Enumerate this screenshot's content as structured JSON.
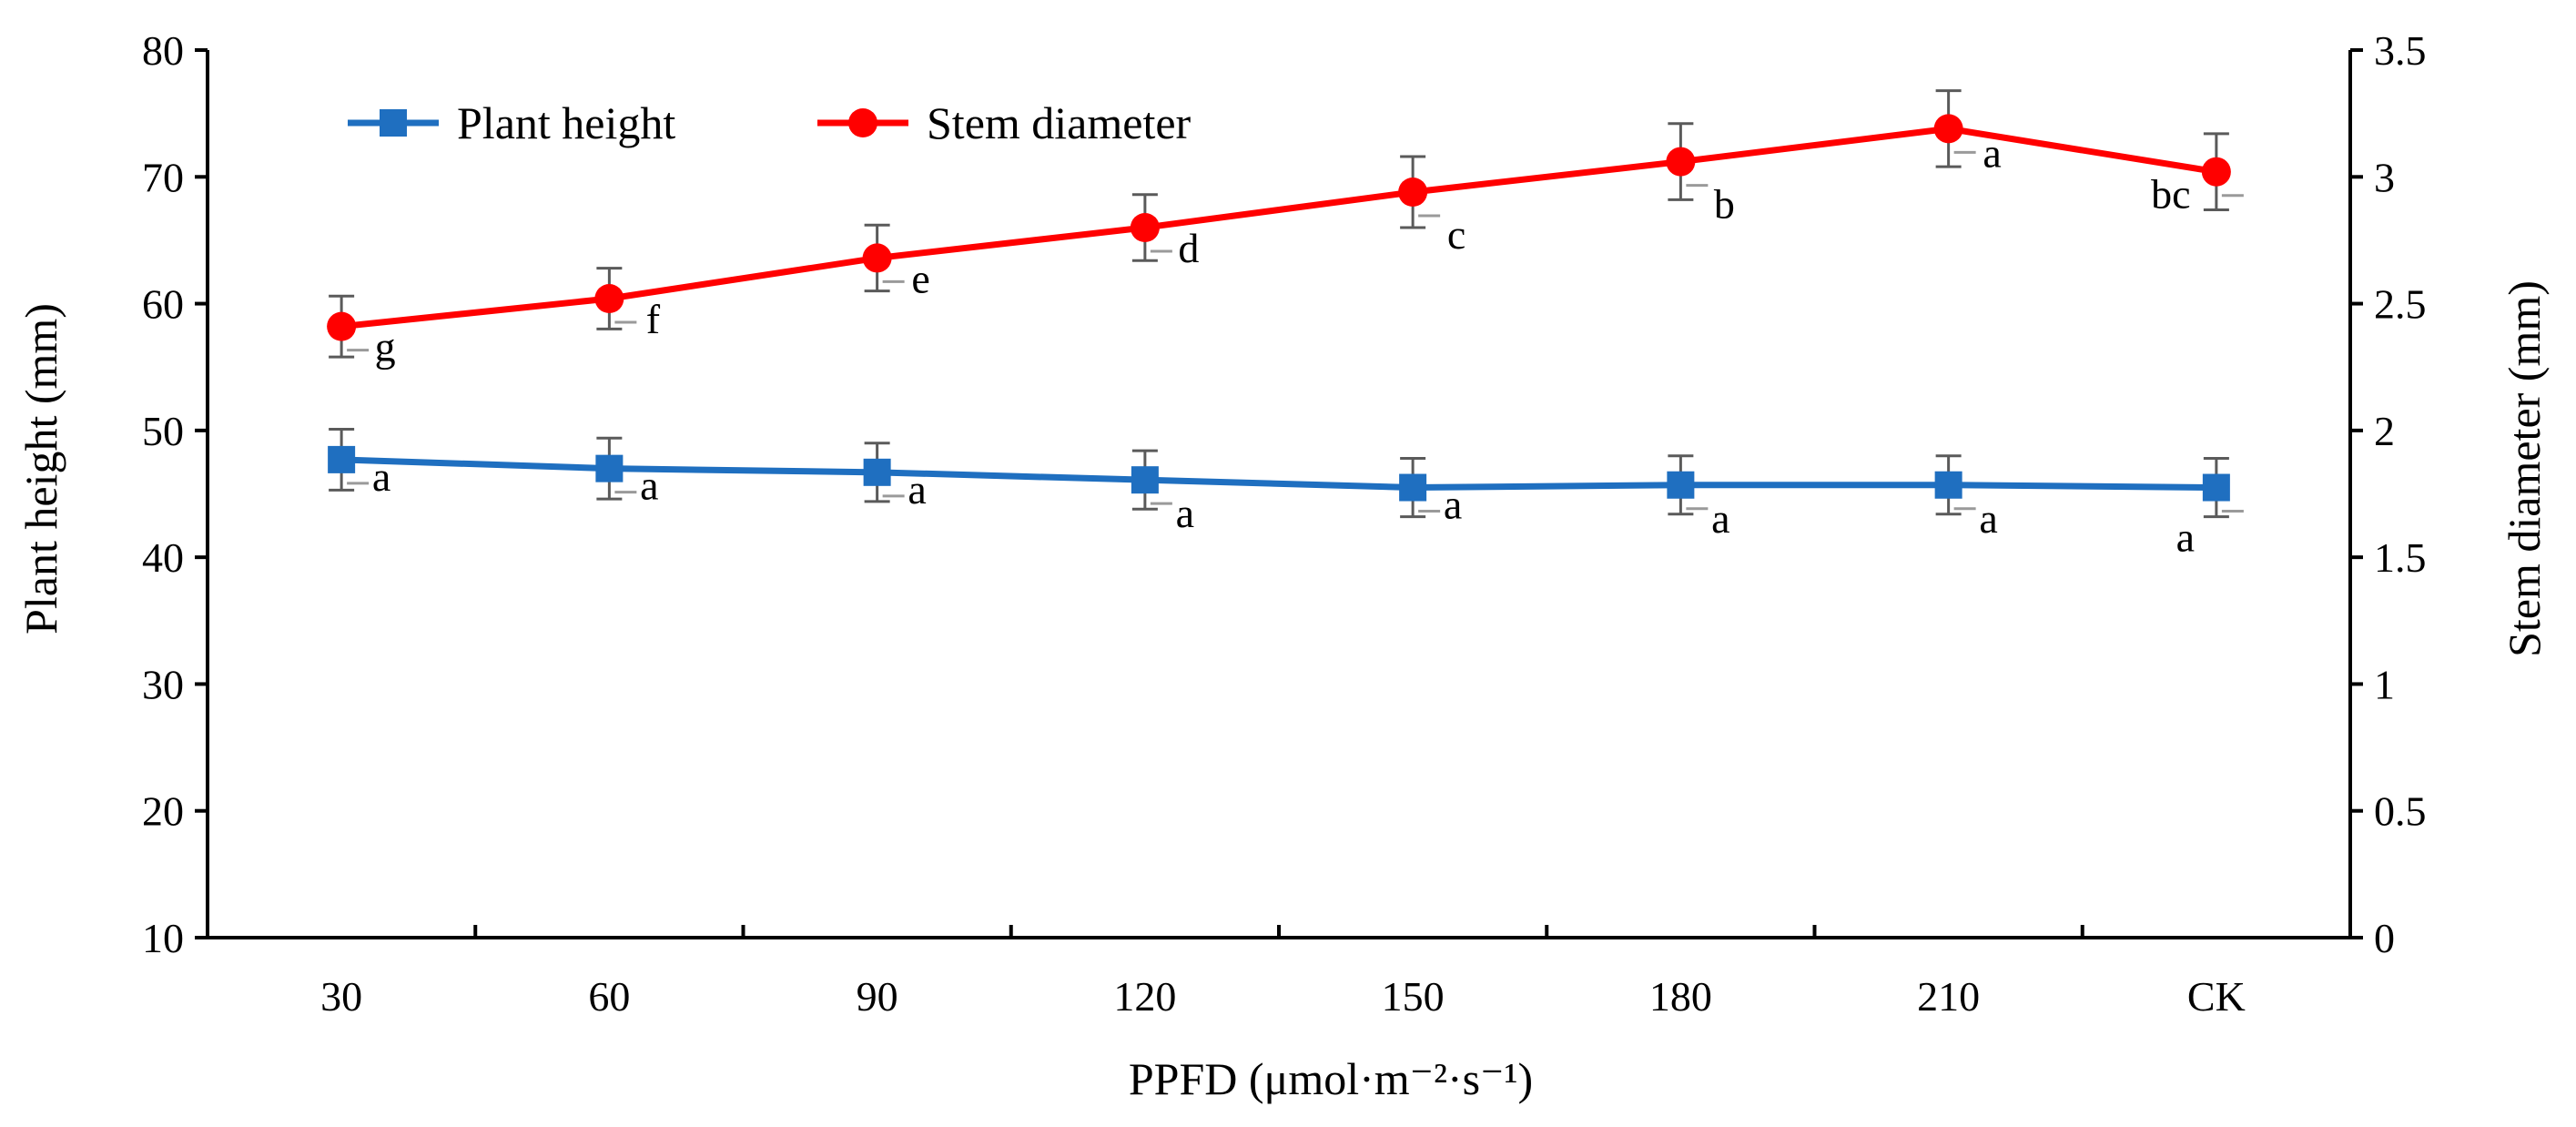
{
  "chart_data": {
    "type": "line",
    "categories": [
      "30",
      "60",
      "90",
      "120",
      "150",
      "180",
      "210",
      "CK"
    ],
    "xlabel": "PPFD (μmol·m⁻²·s⁻¹)",
    "ylabel_left": "Plant height (mm)",
    "ylabel_right": "Stem diameter (mm)",
    "ylim_left": [
      10,
      80
    ],
    "yticks_left": [
      "10",
      "20",
      "30",
      "40",
      "50",
      "60",
      "70",
      "80"
    ],
    "ylim_right": [
      0,
      3.5
    ],
    "yticks_right": [
      "0",
      "0.5",
      "1",
      "1.5",
      "2",
      "2.5",
      "3",
      "3.5"
    ],
    "grid": false,
    "legend_position": "top-left",
    "series": [
      {
        "name": "Plant height",
        "axis": "left",
        "color": "#1f6fc0",
        "marker": "square",
        "values": [
          47.7,
          47.0,
          46.7,
          46.1,
          45.5,
          45.7,
          45.7,
          45.5
        ],
        "errors": [
          2.4,
          2.4,
          2.3,
          2.3,
          2.3,
          2.3,
          2.3,
          2.3
        ],
        "letters": [
          "a",
          "a",
          "a",
          "a",
          "a",
          "a",
          "a",
          "a"
        ]
      },
      {
        "name": "Stem diameter",
        "axis": "right",
        "color": "#ff0000",
        "marker": "circle",
        "values": [
          2.41,
          2.52,
          2.68,
          2.8,
          2.94,
          3.06,
          3.19,
          3.02
        ],
        "errors": [
          0.12,
          0.12,
          0.13,
          0.13,
          0.14,
          0.15,
          0.15,
          0.15
        ],
        "letters": [
          "g",
          "f",
          "e",
          "d",
          "c",
          "b",
          "a",
          "bc"
        ]
      }
    ]
  }
}
